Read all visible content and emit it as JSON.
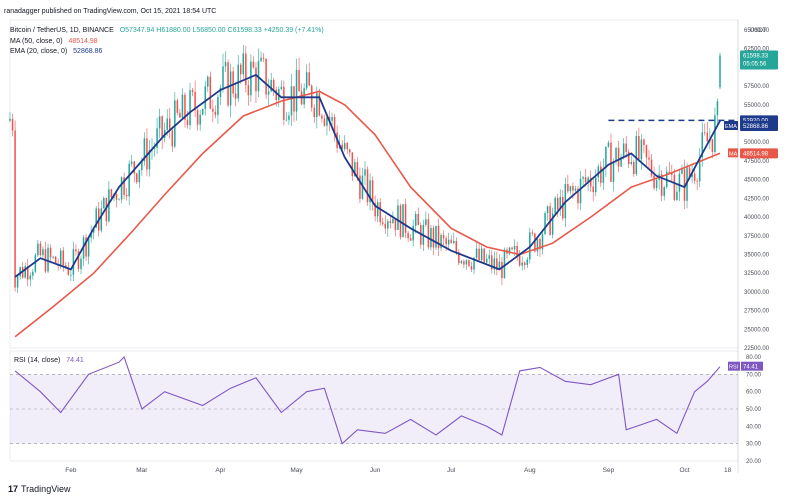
{
  "header": {
    "published": "ranadagger published on TradingView.com, Oct 15, 2021 18:54 UTC"
  },
  "legend": {
    "title": "Bitcoin / TetherUS, 1D, BINANCE",
    "ohlc": "O57347.94 H61880.00 L56850.00 C61598.33 +4250.39 (+7.41%)",
    "ma": {
      "label": "MA (50, close, 0)",
      "value": "48514.98",
      "color": "#e8584a"
    },
    "ema": {
      "label": "EMA (20, close, 0)",
      "value": "52868.86",
      "color": "#1e3a8a"
    }
  },
  "rsi_legend": {
    "label": "RSI (14, close)",
    "value": "74.41"
  },
  "footer": {
    "brand": "TradingView",
    "logo_text": "17"
  },
  "price_axis": {
    "currency": "USDT",
    "ticks": [
      "65000.00",
      "62500.00",
      "60000.00",
      "57500.00",
      "55000.00",
      "52500.00",
      "50000.00",
      "47500.00",
      "45000.00",
      "42500.00",
      "40000.00",
      "37500.00",
      "35000.00",
      "32500.00",
      "30000.00",
      "27500.00",
      "25000.00",
      "22500.00"
    ],
    "last_price_label": "61598.33",
    "countdown_label": "05:05:56",
    "level_label": "52920.00",
    "ema_label": "EMA",
    "ema_value_label": "52868.86",
    "ma_label": "MA",
    "ma_value_label": "48514.98"
  },
  "rsi_axis": {
    "ticks": [
      "80.00",
      "70.00",
      "60.00",
      "50.00",
      "40.00",
      "30.00",
      "20.00"
    ],
    "badge_label": "RSI",
    "badge_value": "74.41"
  },
  "time_axis": {
    "labels": [
      "Feb",
      "Mar",
      "Apr",
      "May",
      "Jun",
      "Jul",
      "Aug",
      "Sep",
      "Oct",
      "18"
    ]
  },
  "colors": {
    "up": "#26a69a",
    "down": "#ef5350",
    "ma": "#e8584a",
    "ema": "#1e3a8a",
    "rsi": "#7e57c2",
    "level": "#1e3a8a"
  },
  "chart_data": {
    "type": "candlestick",
    "title": "Bitcoin / TetherUS, 1D, BINANCE",
    "last_close": 61598.33,
    "ylim": [
      22500,
      65000
    ],
    "resistance_level": 52920.0,
    "series": [
      {
        "name": "MA (50, close, 0)",
        "last": 48514.98,
        "points": [
          [
            "Jan 10",
            24000
          ],
          [
            "Jan 25",
            28000
          ],
          [
            "Feb 10",
            32500
          ],
          [
            "Feb 25",
            38000
          ],
          [
            "Mar 10",
            43000
          ],
          [
            "Mar 25",
            48500
          ],
          [
            "Apr 10",
            53500
          ],
          [
            "Apr 25",
            55500
          ],
          [
            "May 10",
            56800
          ],
          [
            "May 20",
            55000
          ],
          [
            "Jun 1",
            51000
          ],
          [
            "Jun 15",
            44000
          ],
          [
            "Jul 1",
            38500
          ],
          [
            "Jul 15",
            36000
          ],
          [
            "Jul 28",
            35000
          ],
          [
            "Aug 10",
            36500
          ],
          [
            "Aug 25",
            40000
          ],
          [
            "Sep 10",
            44000
          ],
          [
            "Sep 25",
            45800
          ],
          [
            "Oct 15",
            48515
          ]
        ]
      },
      {
        "name": "EMA (20, close, 0)",
        "last": 52868.86,
        "points": [
          [
            "Jan 10",
            32000
          ],
          [
            "Jan 20",
            34500
          ],
          [
            "Feb 1",
            33000
          ],
          [
            "Feb 10",
            38500
          ],
          [
            "Feb 20",
            44000
          ],
          [
            "Mar 1",
            47500
          ],
          [
            "Mar 10",
            51000
          ],
          [
            "Mar 20",
            54000
          ],
          [
            "Apr 1",
            57000
          ],
          [
            "Apr 15",
            59000
          ],
          [
            "Apr 25",
            56000
          ],
          [
            "May 10",
            56000
          ],
          [
            "May 20",
            48000
          ],
          [
            "Jun 1",
            41500
          ],
          [
            "Jun 15",
            38500
          ],
          [
            "Jul 1",
            35500
          ],
          [
            "Jul 20",
            33000
          ],
          [
            "Aug 1",
            36000
          ],
          [
            "Aug 15",
            42000
          ],
          [
            "Sep 1",
            47000
          ],
          [
            "Sep 10",
            48500
          ],
          [
            "Sep 20",
            45500
          ],
          [
            "Oct 1",
            44000
          ],
          [
            "Oct 8",
            48500
          ],
          [
            "Oct 15",
            52869
          ]
        ]
      },
      {
        "name": "RSI (14, close)",
        "last": 74.41,
        "ylim": [
          20,
          80
        ],
        "points": [
          [
            "Jan 10",
            72
          ],
          [
            "Jan 20",
            60
          ],
          [
            "Jan 28",
            48
          ],
          [
            "Feb 8",
            70
          ],
          [
            "Feb 20",
            77
          ],
          [
            "Feb 22",
            80
          ],
          [
            "Mar 1",
            50
          ],
          [
            "Mar 10",
            60
          ],
          [
            "Mar 25",
            52
          ],
          [
            "Apr 5",
            62
          ],
          [
            "Apr 15",
            68
          ],
          [
            "Apr 25",
            48
          ],
          [
            "May 5",
            60
          ],
          [
            "May 12",
            62
          ],
          [
            "May 19",
            30
          ],
          [
            "May 25",
            38
          ],
          [
            "Jun 5",
            36
          ],
          [
            "Jun 15",
            44
          ],
          [
            "Jun 25",
            35
          ],
          [
            "Jul 5",
            46
          ],
          [
            "Jul 15",
            40
          ],
          [
            "Jul 21",
            35
          ],
          [
            "Jul 28",
            72
          ],
          [
            "Aug 5",
            74
          ],
          [
            "Aug 15",
            66
          ],
          [
            "Aug 25",
            64
          ],
          [
            "Sep 5",
            70
          ],
          [
            "Sep 8",
            38
          ],
          [
            "Sep 20",
            44
          ],
          [
            "Sep 28",
            36
          ],
          [
            "Oct 5",
            60
          ],
          [
            "Oct 10",
            66
          ],
          [
            "Oct 15",
            74.41
          ]
        ]
      }
    ],
    "rsi_band": [
      30,
      70
    ],
    "xlabels": [
      "Feb",
      "Mar",
      "Apr",
      "May",
      "Jun",
      "Jul",
      "Aug",
      "Sep",
      "Oct",
      "18"
    ]
  }
}
